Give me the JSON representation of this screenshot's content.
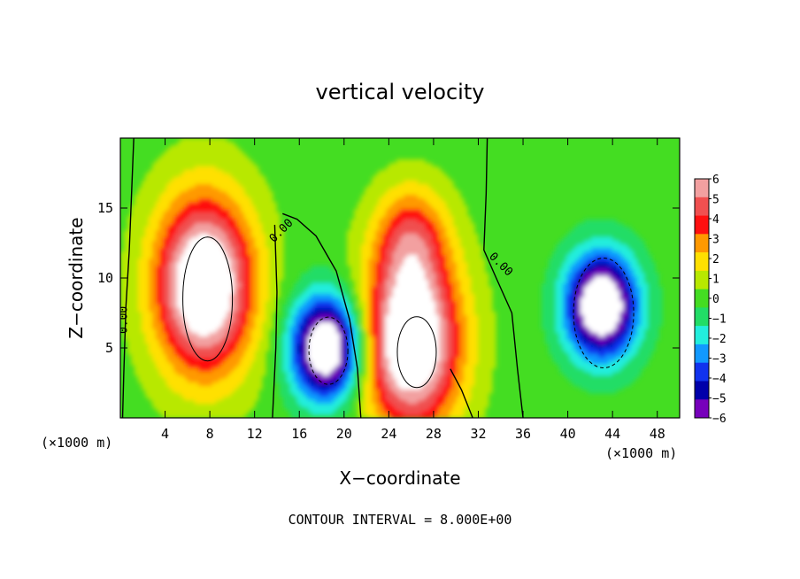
{
  "chart_data": {
    "type": "heatmap",
    "title": "vertical velocity",
    "xlabel": "X−coordinate",
    "ylabel": "Z−coordinate",
    "x_unit_left": "(×1000 m)",
    "x_unit_right": "(×1000 m)",
    "footer": "CONTOUR INTERVAL = 8.000E+00",
    "xlim": [
      0,
      50
    ],
    "ylim": [
      0,
      20
    ],
    "x_ticks": [
      4,
      8,
      12,
      16,
      20,
      24,
      28,
      32,
      36,
      40,
      44,
      48
    ],
    "y_ticks": [
      5,
      10,
      15
    ],
    "colorbar": {
      "levels": [
        6,
        5,
        4,
        3,
        2,
        1,
        0,
        -1,
        -2,
        -3,
        -4,
        -5,
        -6
      ],
      "tick_labels": [
        "6",
        "5",
        "4",
        "3",
        "2",
        "1",
        "0",
        "−1",
        "−2",
        "−3",
        "−4",
        "−5",
        "−6"
      ],
      "colors": [
        "#f2a0a0",
        "#f05050",
        "#ff1010",
        "#ff9900",
        "#ffe000",
        "#b8e800",
        "#44dd22",
        "#22dd66",
        "#22eedd",
        "#1199ff",
        "#1133ee",
        "#0000aa",
        "#7700bb"
      ]
    },
    "contour_labels": [
      "0.00",
      "0.00",
      "0.00"
    ],
    "features": [
      {
        "x": 7.5,
        "z": 9.5,
        "peak": 9
      },
      {
        "x": 18.5,
        "z": 5.0,
        "peak": -9
      },
      {
        "x": 26.0,
        "z": 5.5,
        "peak": 9
      },
      {
        "x": 26.0,
        "z": 13.0,
        "peak": 3.5
      },
      {
        "x": 43.0,
        "z": 8.0,
        "peak": -9
      }
    ]
  }
}
